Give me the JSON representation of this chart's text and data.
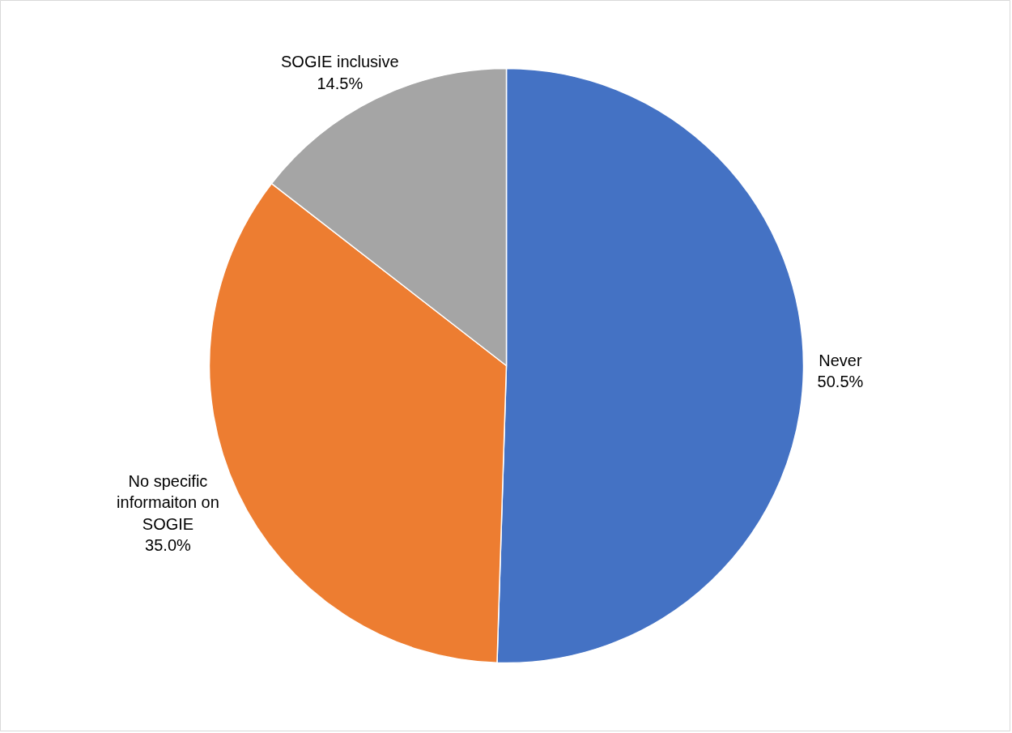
{
  "chart_data": {
    "type": "pie",
    "categories": [
      "Never",
      "No specific informaiton on SOGIE",
      "SOGIE inclusive"
    ],
    "values": [
      50.5,
      35.0,
      14.5
    ],
    "colors": [
      "#4472c4",
      "#ed7d31",
      "#a5a5a5"
    ],
    "value_labels": [
      "50.5%",
      "35.0%",
      "14.5%"
    ]
  }
}
